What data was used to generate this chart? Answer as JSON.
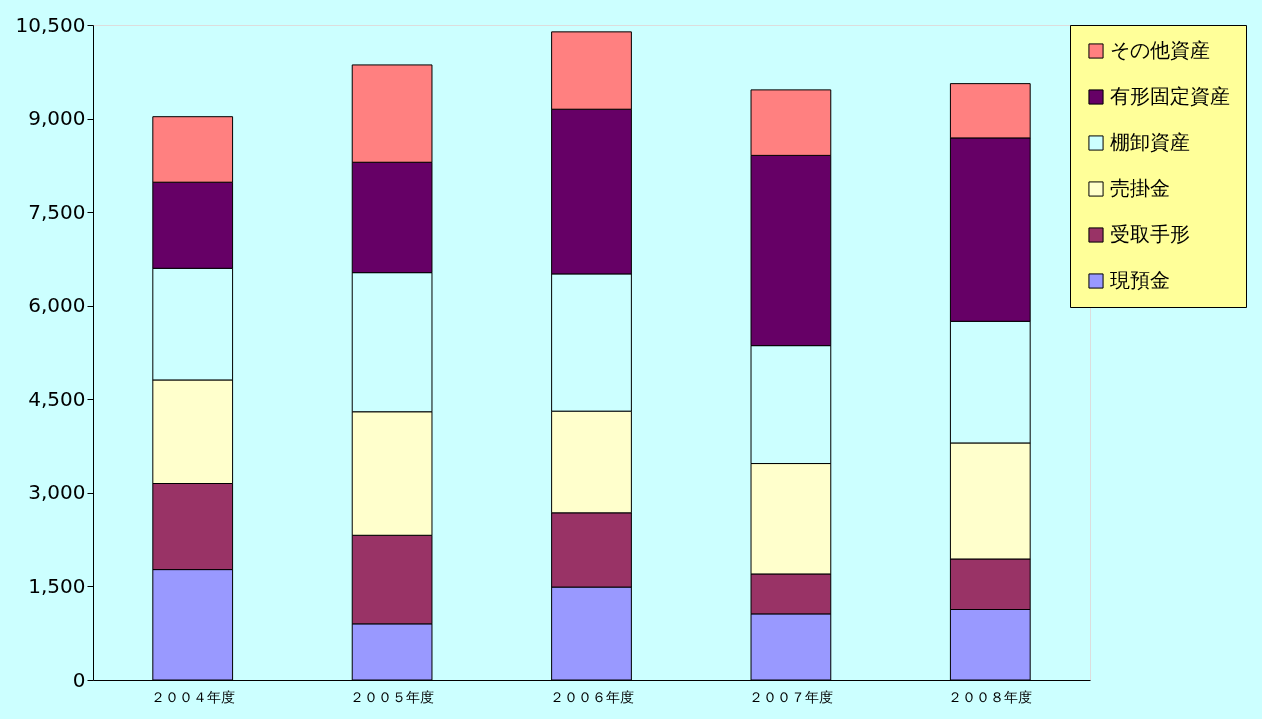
{
  "chart_data": {
    "type": "bar",
    "stacked": true,
    "categories": [
      "２００４年度",
      "２００５年度",
      "２００６年度",
      "２００７年度",
      "２００８年度"
    ],
    "series": [
      {
        "name": "現預金",
        "color": "#9999ff",
        "values": [
          1770,
          900,
          1490,
          1060,
          1130
        ]
      },
      {
        "name": "受取手形",
        "color": "#993366",
        "values": [
          1380,
          1420,
          1190,
          640,
          810
        ]
      },
      {
        "name": "売掛金",
        "color": "#ffffcc",
        "values": [
          1660,
          1980,
          1630,
          1770,
          1860
        ]
      },
      {
        "name": "棚卸資産",
        "color": "#ccffff",
        "values": [
          1790,
          2230,
          2200,
          1890,
          1950
        ]
      },
      {
        "name": "有形固定資産",
        "color": "#660066",
        "values": [
          1380,
          1770,
          2640,
          3050,
          2940
        ]
      },
      {
        "name": "その他資産",
        "color": "#ff8080",
        "values": [
          1050,
          1560,
          1240,
          1050,
          870
        ]
      }
    ],
    "ylim": [
      0,
      10500
    ],
    "yticks": [
      0,
      {
        "value": 1500,
        "label": "1,500"
      },
      {
        "value": 3000,
        "label": "3,000"
      },
      {
        "value": 4500,
        "label": "4,500"
      },
      {
        "value": 6000,
        "label": "6,000"
      },
      {
        "value": 7500,
        "label": "7,500"
      },
      {
        "value": 9000,
        "label": "9,000"
      },
      {
        "value": 10500,
        "label": "10,500"
      }
    ],
    "grid": false,
    "legend": "right"
  }
}
